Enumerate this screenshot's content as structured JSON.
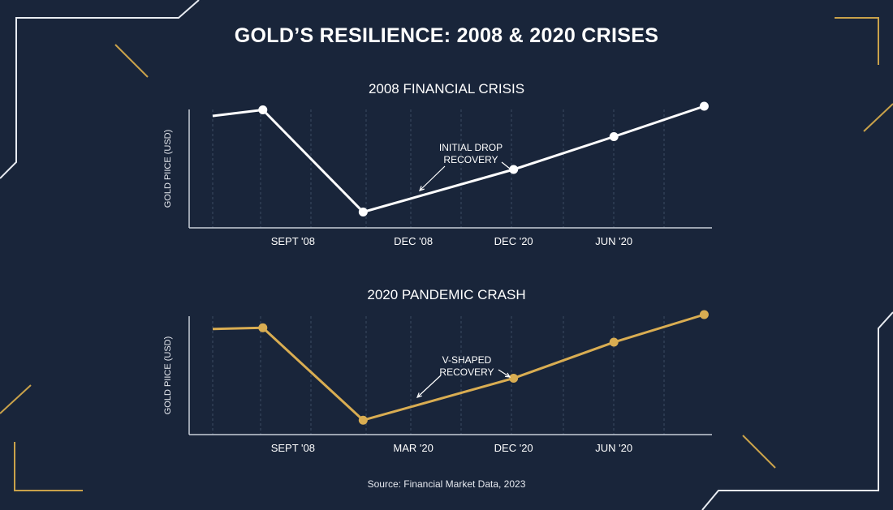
{
  "title": "GOLD’S RESILIENCE: 2008 & 2020 CRISES",
  "source": "Source: Financial Market Data, 2023",
  "colors": {
    "background": "#19253a",
    "accent_gold": "#d9ad52",
    "line_white": "#ffffff"
  },
  "chart_data": [
    {
      "type": "line",
      "title": "2008 FINANCIAL CRISIS",
      "ylabel": "GOLD PIICE (USD)",
      "xlabel": "",
      "x_tick_labels": [
        "SEPT '08",
        "DEC '08",
        "DEC '20",
        "JUN '20"
      ],
      "x_tick_positions": [
        1.6,
        4,
        6,
        8
      ],
      "x": [
        0,
        1,
        3,
        6,
        8,
        9.8
      ],
      "values": [
        92,
        97,
        13,
        48,
        75,
        100
      ],
      "ylim": [
        0,
        100
      ],
      "color": "#ffffff",
      "grid": "vertical dashed",
      "annotation": {
        "lines": [
          "INITIAL DROP",
          "RECOVERY"
        ]
      }
    },
    {
      "type": "line",
      "title": "2020 PANDEMIC CRASH",
      "ylabel": "GOLD PIICE (USD)",
      "xlabel": "",
      "x_tick_labels": [
        "SEPT '08",
        "MAR '20",
        "DEC '20",
        "JUN '20"
      ],
      "x_tick_positions": [
        1.6,
        4,
        6,
        8
      ],
      "x": [
        0,
        1,
        3,
        6,
        8,
        9.8
      ],
      "values": [
        88,
        89,
        12,
        47,
        77,
        100
      ],
      "ylim": [
        0,
        100
      ],
      "color": "#d9ad52",
      "grid": "vertical dashed",
      "annotation": {
        "lines": [
          "V-SHAPED",
          "RECOVERY"
        ]
      }
    }
  ]
}
